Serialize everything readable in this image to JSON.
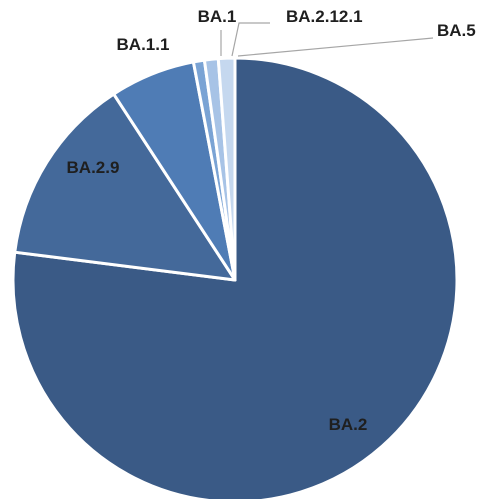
{
  "chart_data": {
    "type": "pie",
    "title": "",
    "slices": [
      {
        "label": "BA.2",
        "value": 77.0,
        "color": "#3a5a86"
      },
      {
        "label": "BA.2.9",
        "value": 13.8,
        "color": "#44699a"
      },
      {
        "label": "BA.1.1",
        "value": 6.2,
        "color": "#4f7cb5"
      },
      {
        "label": "BA.1",
        "value": 0.8,
        "color": "#7aa3d4"
      },
      {
        "label": "BA.2.12.1",
        "value": 1.0,
        "color": "#a7c3e6"
      },
      {
        "label": "BA.5",
        "value": 1.2,
        "color": "#c5d8ef"
      }
    ],
    "grid": false,
    "legend": "none"
  }
}
